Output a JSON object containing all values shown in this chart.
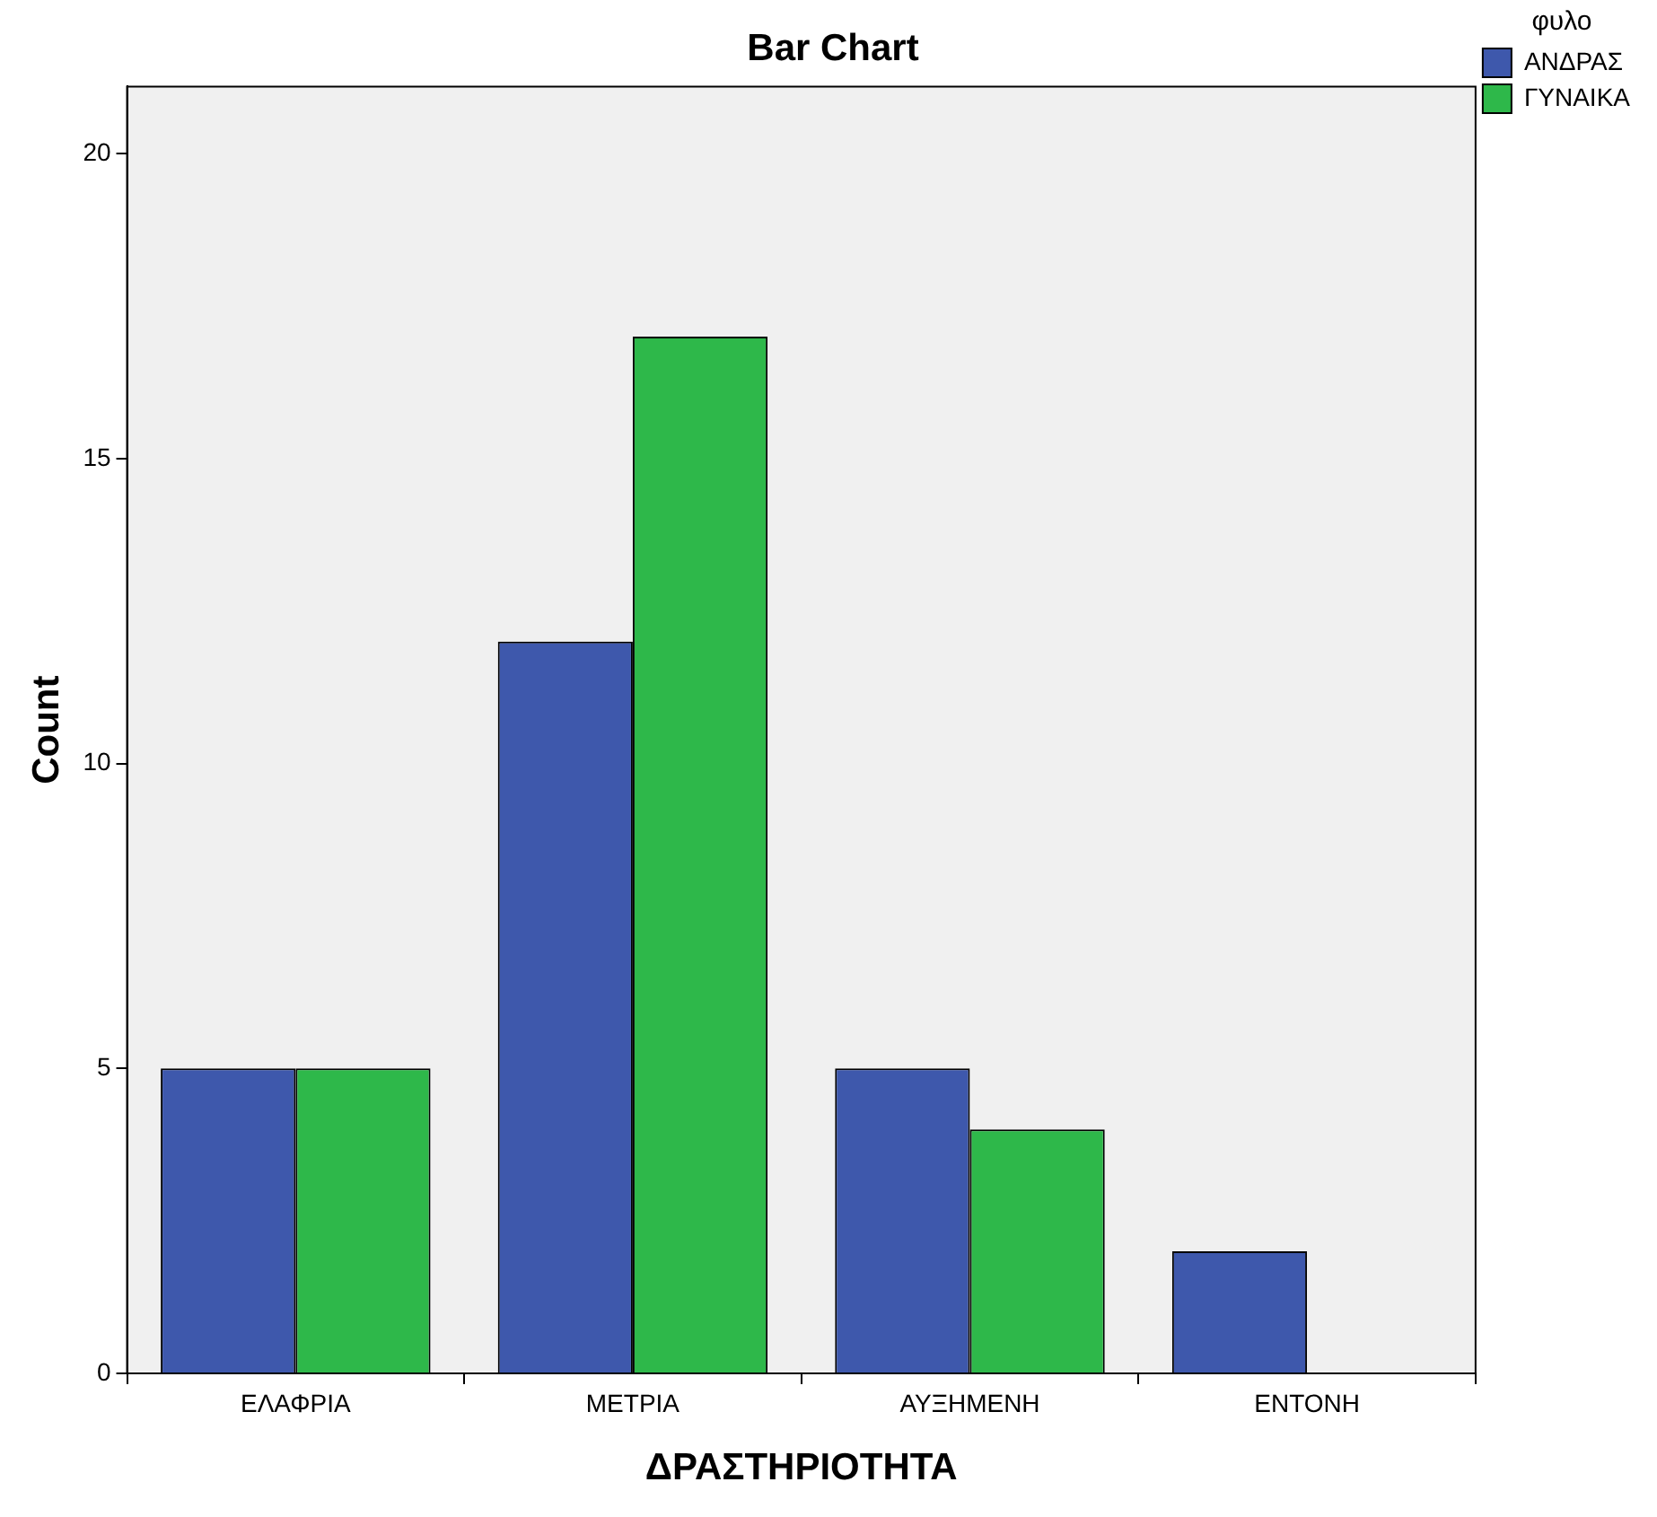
{
  "chart_data": {
    "type": "bar",
    "title": "Bar Chart",
    "xlabel": "ΔΡΑΣΤΗΡΙΟΤΗΤΑ",
    "ylabel": "Count",
    "legend_title": "φυλο",
    "legend": "top right",
    "categories": [
      "ΕΛΑΦΡΙΑ",
      "ΜΕΤΡΙΑ",
      "ΑΥΞΗΜΕΝΗ",
      "ΕΝΤΟΝΗ"
    ],
    "series": [
      {
        "name": "ΑΝΔΡΑΣ",
        "color": "#3e58ac",
        "values": [
          5,
          12,
          5,
          2
        ]
      },
      {
        "name": "ΓΥΝΑΙΚΑ",
        "color": "#2eb84a",
        "values": [
          5,
          17,
          4,
          0
        ]
      }
    ],
    "ylim": [
      0,
      21.1
    ],
    "yticks": [
      0,
      5,
      10,
      15,
      20
    ],
    "grid": false
  }
}
